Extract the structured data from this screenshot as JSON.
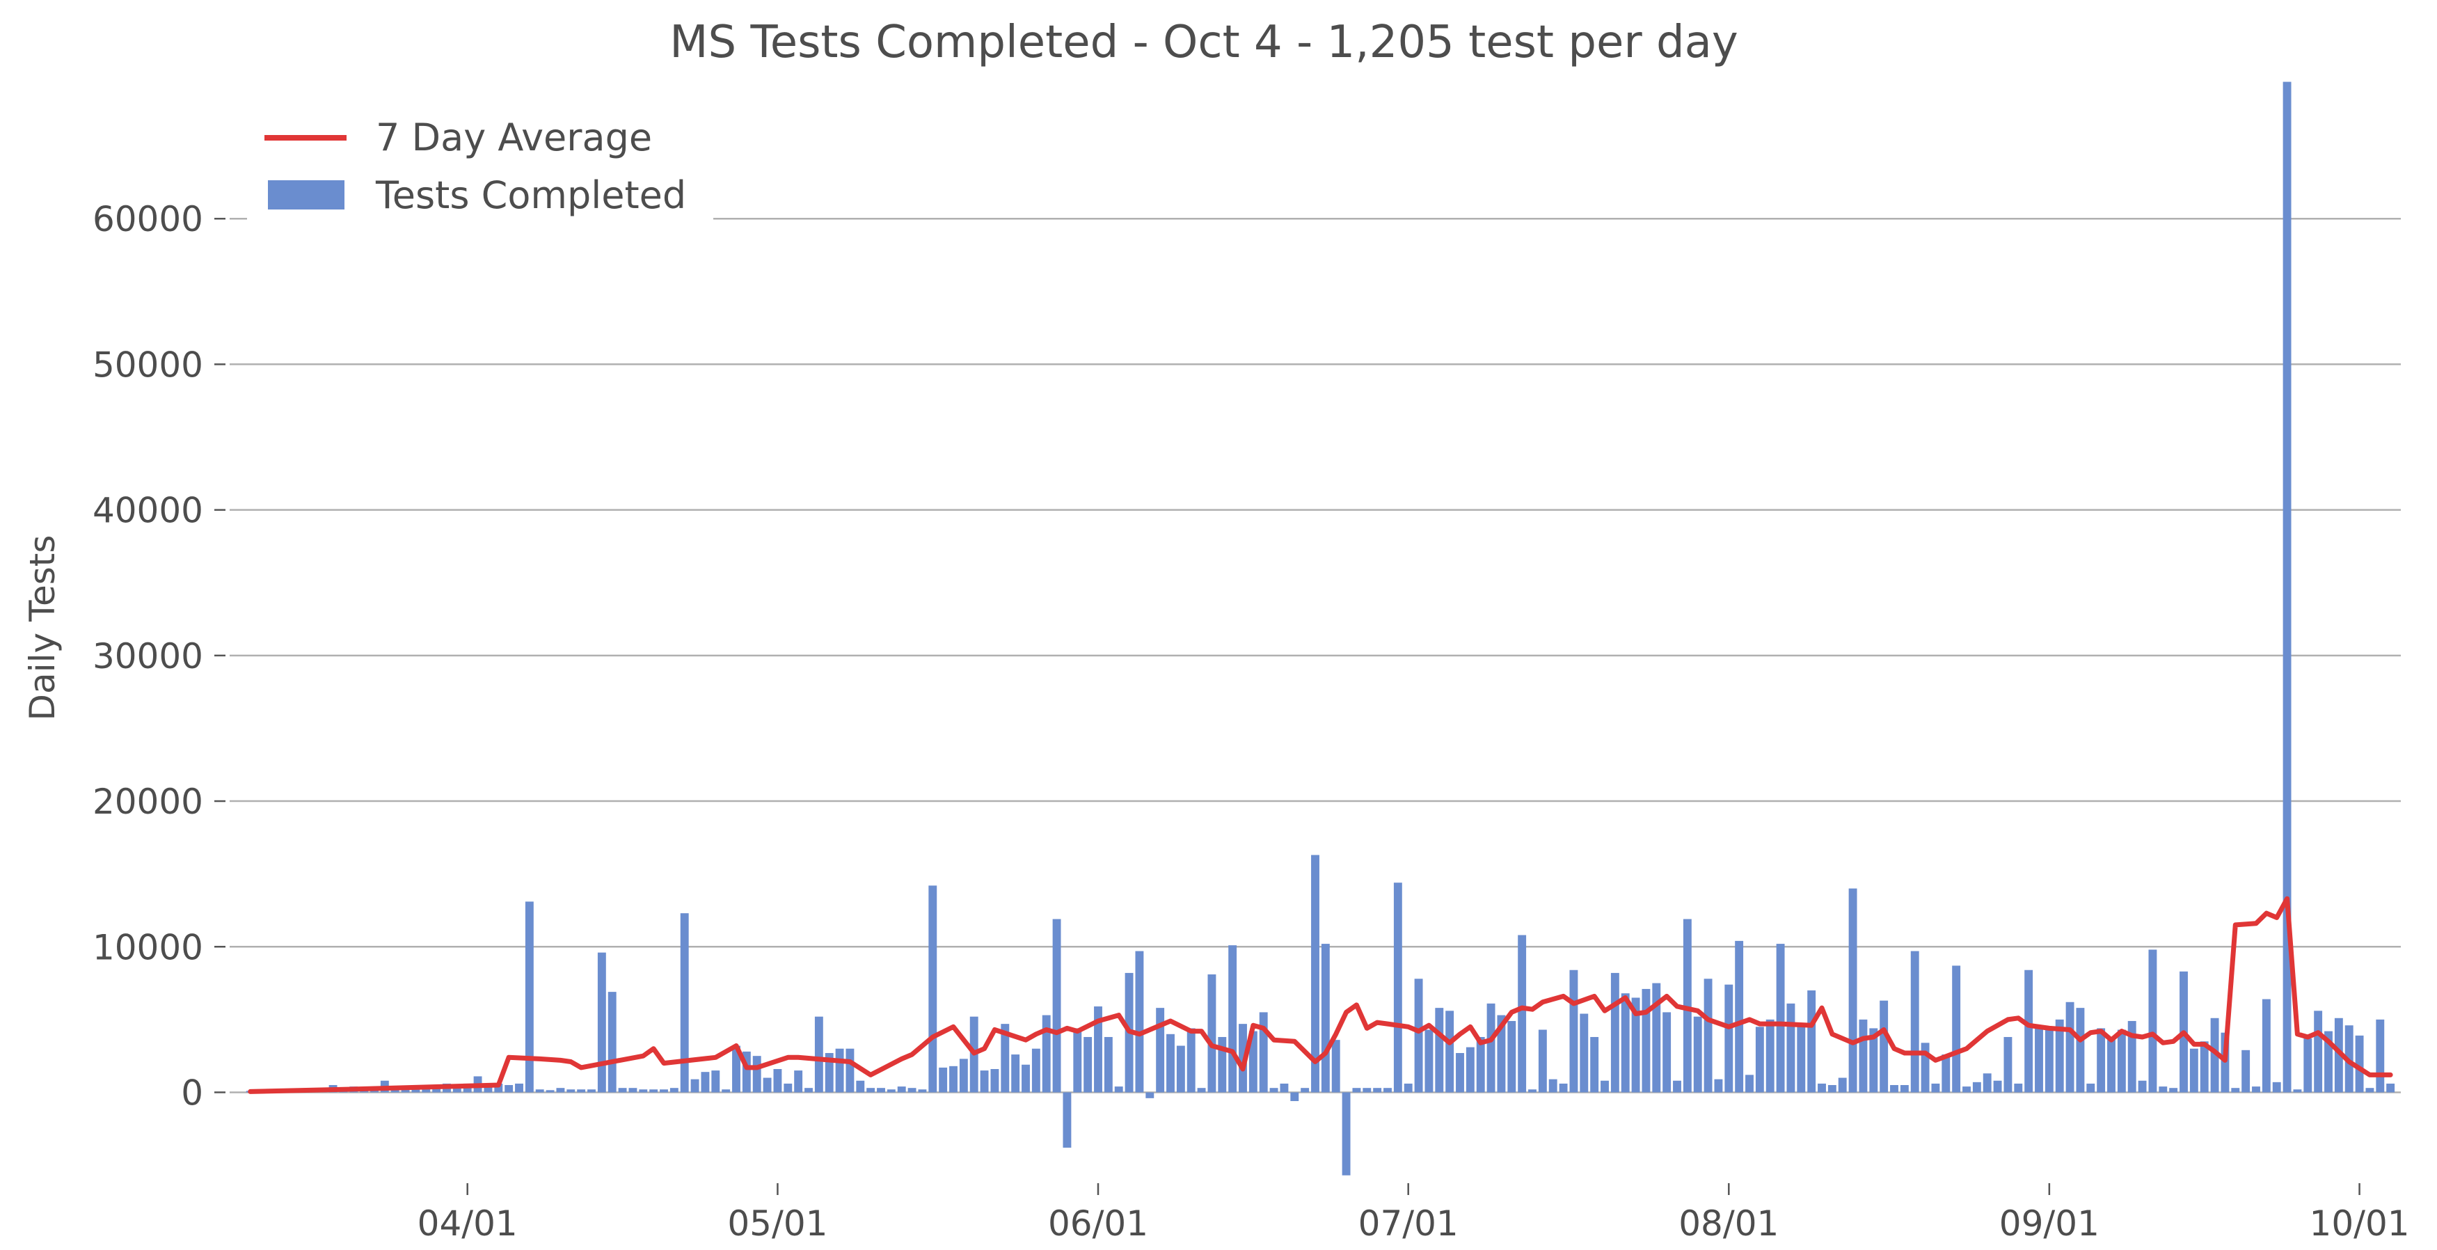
{
  "chart_data": {
    "type": "bar",
    "title": "MS Tests Completed - Oct 4 - 1,205 test per day",
    "xlabel": "",
    "ylabel": "Daily Tests",
    "ylim": [
      -6000,
      70000
    ],
    "xlim": [
      "2020-03-09",
      "2020-10-05"
    ],
    "grid": "horizontal",
    "legend_position": "top-left",
    "colors": {
      "bars": "#6a8dcf",
      "line": "#e03636",
      "grid": "#b0b0b0",
      "text": "#4d4d4d"
    },
    "yticks": [
      {
        "value": 0,
        "label": "0"
      },
      {
        "value": 10000,
        "label": "10000"
      },
      {
        "value": 20000,
        "label": "20000"
      },
      {
        "value": 30000,
        "label": "30000"
      },
      {
        "value": 40000,
        "label": "40000"
      },
      {
        "value": 50000,
        "label": "50000"
      },
      {
        "value": 60000,
        "label": "60000"
      }
    ],
    "xticks": [
      {
        "value": "2020-04-01",
        "label": "04/01"
      },
      {
        "value": "2020-05-01",
        "label": "05/01"
      },
      {
        "value": "2020-06-01",
        "label": "06/01"
      },
      {
        "value": "2020-07-01",
        "label": "07/01"
      },
      {
        "value": "2020-08-01",
        "label": "08/01"
      },
      {
        "value": "2020-09-01",
        "label": "09/01"
      },
      {
        "value": "2020-10-01",
        "label": "10/01"
      }
    ],
    "legend": [
      {
        "name": "7 Day Average",
        "kind": "line"
      },
      {
        "name": "Tests Completed",
        "kind": "bar"
      }
    ],
    "bar_dates": [
      "2020-03-11",
      "2020-03-12",
      "2020-03-13",
      "2020-03-14",
      "2020-03-15",
      "2020-03-16",
      "2020-03-17",
      "2020-03-18",
      "2020-03-19",
      "2020-03-20",
      "2020-03-21",
      "2020-03-22",
      "2020-03-23",
      "2020-03-24",
      "2020-03-25",
      "2020-03-26",
      "2020-03-27",
      "2020-03-28",
      "2020-03-29",
      "2020-03-30",
      "2020-03-31",
      "2020-04-01",
      "2020-04-02",
      "2020-04-03",
      "2020-04-04",
      "2020-04-05",
      "2020-04-06",
      "2020-04-07",
      "2020-04-08",
      "2020-04-09",
      "2020-04-10",
      "2020-04-11",
      "2020-04-12",
      "2020-04-13",
      "2020-04-14",
      "2020-04-15",
      "2020-04-16",
      "2020-04-17",
      "2020-04-18",
      "2020-04-19",
      "2020-04-20",
      "2020-04-21",
      "2020-04-22",
      "2020-04-23",
      "2020-04-24",
      "2020-04-25",
      "2020-04-26",
      "2020-04-27",
      "2020-04-28",
      "2020-04-29",
      "2020-04-30",
      "2020-05-01",
      "2020-05-02",
      "2020-05-03",
      "2020-05-04",
      "2020-05-05",
      "2020-05-06",
      "2020-05-07",
      "2020-05-08",
      "2020-05-09",
      "2020-05-10",
      "2020-05-11",
      "2020-05-12",
      "2020-05-13",
      "2020-05-14",
      "2020-05-15",
      "2020-05-16",
      "2020-05-17",
      "2020-05-18",
      "2020-05-19",
      "2020-05-20",
      "2020-05-21",
      "2020-05-22",
      "2020-05-23",
      "2020-05-24",
      "2020-05-25",
      "2020-05-26",
      "2020-05-27",
      "2020-05-28",
      "2020-05-29",
      "2020-05-30",
      "2020-05-31",
      "2020-06-01",
      "2020-06-02",
      "2020-06-03",
      "2020-06-04",
      "2020-06-05",
      "2020-06-06",
      "2020-06-07",
      "2020-06-08",
      "2020-06-09",
      "2020-06-10",
      "2020-06-11",
      "2020-06-12",
      "2020-06-13",
      "2020-06-14",
      "2020-06-15",
      "2020-06-16",
      "2020-06-17",
      "2020-06-18",
      "2020-06-19",
      "2020-06-20",
      "2020-06-21",
      "2020-06-22",
      "2020-06-23",
      "2020-06-24",
      "2020-06-25",
      "2020-06-26",
      "2020-06-27",
      "2020-06-28",
      "2020-06-29",
      "2020-06-30",
      "2020-07-01",
      "2020-07-02",
      "2020-07-03",
      "2020-07-04",
      "2020-07-05",
      "2020-07-06",
      "2020-07-07",
      "2020-07-08",
      "2020-07-09",
      "2020-07-10",
      "2020-07-11",
      "2020-07-12",
      "2020-07-13",
      "2020-07-14",
      "2020-07-15",
      "2020-07-16",
      "2020-07-17",
      "2020-07-18",
      "2020-07-19",
      "2020-07-20",
      "2020-07-21",
      "2020-07-22",
      "2020-07-23",
      "2020-07-24",
      "2020-07-25",
      "2020-07-26",
      "2020-07-27",
      "2020-07-28",
      "2020-07-29",
      "2020-07-30",
      "2020-07-31",
      "2020-08-01",
      "2020-08-02",
      "2020-08-03",
      "2020-08-04",
      "2020-08-05",
      "2020-08-06",
      "2020-08-07",
      "2020-08-08",
      "2020-08-09",
      "2020-08-10",
      "2020-08-11",
      "2020-08-12",
      "2020-08-13",
      "2020-08-14",
      "2020-08-15",
      "2020-08-16",
      "2020-08-17",
      "2020-08-18",
      "2020-08-19",
      "2020-08-20",
      "2020-08-21",
      "2020-08-22",
      "2020-08-23",
      "2020-08-24",
      "2020-08-25",
      "2020-08-26",
      "2020-08-27",
      "2020-08-28",
      "2020-08-29",
      "2020-08-30",
      "2020-08-31",
      "2020-09-01",
      "2020-09-02",
      "2020-09-03",
      "2020-09-04",
      "2020-09-05",
      "2020-09-06",
      "2020-09-07",
      "2020-09-08",
      "2020-09-09",
      "2020-09-10",
      "2020-09-11",
      "2020-09-12",
      "2020-09-13",
      "2020-09-14",
      "2020-09-15",
      "2020-09-16",
      "2020-09-17",
      "2020-09-18",
      "2020-09-19",
      "2020-09-20",
      "2020-09-21",
      "2020-09-22",
      "2020-09-23",
      "2020-09-24",
      "2020-09-25",
      "2020-09-26",
      "2020-09-27",
      "2020-09-28",
      "2020-09-29",
      "2020-09-30",
      "2020-10-01",
      "2020-10-02",
      "2020-10-03",
      "2020-10-04"
    ],
    "bar_values": [
      100,
      100,
      100,
      100,
      150,
      200,
      250,
      300,
      500,
      300,
      400,
      250,
      300,
      800,
      300,
      400,
      350,
      300,
      500,
      600,
      500,
      600,
      1100,
      500,
      600,
      500,
      600,
      13100,
      200,
      150,
      300,
      200,
      200,
      200,
      9600,
      6900,
      300,
      300,
      200,
      200,
      200,
      300,
      12300,
      900,
      1400,
      1500,
      200,
      3200,
      2800,
      2500,
      1000,
      1600,
      600,
      1500,
      300,
      5200,
      2700,
      3000,
      3000,
      800,
      300,
      300,
      200,
      400,
      300,
      200,
      14200,
      1700,
      1800,
      2300,
      5200,
      1500,
      1600,
      4700,
      2600,
      1900,
      3000,
      5300,
      11900,
      -3800,
      4400,
      3800,
      5900,
      3800,
      400,
      8200,
      9700,
      -400,
      5800,
      4000,
      3200,
      4400,
      300,
      8100,
      3800,
      10100,
      4700,
      4200,
      5500,
      300,
      600,
      -600,
      300,
      16300,
      10200,
      3600,
      -5700,
      300,
      300,
      300,
      300,
      14400,
      600,
      7800,
      4300,
      5800,
      5600,
      2700,
      3100,
      3800,
      6100,
      5300,
      4900,
      10800,
      200,
      4300,
      900,
      600,
      8400,
      5400,
      3800,
      800,
      8200,
      6800,
      6500,
      7100,
      7500,
      5500,
      800,
      11900,
      5200,
      7800,
      900,
      7400,
      10400,
      1200,
      4500,
      5000,
      10200,
      6100,
      4600,
      7000,
      600,
      500,
      1000,
      14000,
      5000,
      4400,
      6300,
      500,
      500,
      9700,
      3400,
      600,
      2600,
      8700,
      400,
      700,
      1300,
      800,
      3800,
      600,
      8400,
      4500,
      4500,
      5000,
      6200,
      5800,
      600,
      4400,
      3600,
      4300,
      4900,
      800,
      9800,
      400,
      300,
      8300,
      3000,
      3500,
      5100,
      4100,
      300,
      2900,
      400,
      6400,
      700,
      69400,
      200,
      3700,
      5600,
      4200,
      5100,
      4600,
      3900,
      300,
      5000,
      600,
      700,
      600,
      600,
      400
    ],
    "avg_dates": [
      "2020-03-11",
      "2020-03-20",
      "2020-03-30",
      "2020-04-04",
      "2020-04-05",
      "2020-04-08",
      "2020-04-10",
      "2020-04-11",
      "2020-04-12",
      "2020-04-18",
      "2020-04-19",
      "2020-04-20",
      "2020-04-25",
      "2020-04-27",
      "2020-04-28",
      "2020-04-29",
      "2020-05-02",
      "2020-05-03",
      "2020-05-08",
      "2020-05-10",
      "2020-05-13",
      "2020-05-14",
      "2020-05-16",
      "2020-05-18",
      "2020-05-20",
      "2020-05-21",
      "2020-05-22",
      "2020-05-25",
      "2020-05-26",
      "2020-05-27",
      "2020-05-28",
      "2020-05-29",
      "2020-05-30",
      "2020-06-01",
      "2020-06-03",
      "2020-06-04",
      "2020-06-05",
      "2020-06-08",
      "2020-06-10",
      "2020-06-11",
      "2020-06-12",
      "2020-06-14",
      "2020-06-15",
      "2020-06-16",
      "2020-06-17",
      "2020-06-18",
      "2020-06-20",
      "2020-06-22",
      "2020-06-23",
      "2020-06-24",
      "2020-06-25",
      "2020-06-26",
      "2020-06-27",
      "2020-06-28",
      "2020-06-29",
      "2020-07-01",
      "2020-07-02",
      "2020-07-03",
      "2020-07-05",
      "2020-07-06",
      "2020-07-07",
      "2020-07-08",
      "2020-07-09",
      "2020-07-11",
      "2020-07-12",
      "2020-07-13",
      "2020-07-14",
      "2020-07-16",
      "2020-07-17",
      "2020-07-19",
      "2020-07-20",
      "2020-07-22",
      "2020-07-23",
      "2020-07-24",
      "2020-07-26",
      "2020-07-27",
      "2020-07-29",
      "2020-07-30",
      "2020-08-01",
      "2020-08-03",
      "2020-08-04",
      "2020-08-06",
      "2020-08-09",
      "2020-08-10",
      "2020-08-11",
      "2020-08-13",
      "2020-08-14",
      "2020-08-15",
      "2020-08-16",
      "2020-08-17",
      "2020-08-18",
      "2020-08-20",
      "2020-08-21",
      "2020-08-24",
      "2020-08-26",
      "2020-08-28",
      "2020-08-29",
      "2020-08-30",
      "2020-09-01",
      "2020-09-03",
      "2020-09-04",
      "2020-09-05",
      "2020-09-06",
      "2020-09-07",
      "2020-09-08",
      "2020-09-09",
      "2020-09-10",
      "2020-09-11",
      "2020-09-12",
      "2020-09-13",
      "2020-09-14",
      "2020-09-15",
      "2020-09-16",
      "2020-09-17",
      "2020-09-18",
      "2020-09-19",
      "2020-09-21",
      "2020-09-22",
      "2020-09-23",
      "2020-09-24",
      "2020-09-25",
      "2020-09-26",
      "2020-09-27",
      "2020-09-28",
      "2020-09-29",
      "2020-09-30",
      "2020-10-02",
      "2020-10-04"
    ],
    "avg_values": [
      50,
      200,
      400,
      500,
      2400,
      2300,
      2200,
      2100,
      1700,
      2500,
      3000,
      2000,
      2400,
      3200,
      1700,
      1700,
      2400,
      2400,
      2100,
      1200,
      2300,
      2600,
      3800,
      4500,
      2700,
      3000,
      4300,
      3600,
      4000,
      4300,
      4100,
      4400,
      4200,
      4900,
      5300,
      4200,
      4000,
      4900,
      4200,
      4200,
      3200,
      2800,
      1600,
      4600,
      4400,
      3600,
      3500,
      2100,
      2700,
      4000,
      5500,
      6000,
      4400,
      4800,
      4700,
      4500,
      4200,
      4600,
      3400,
      4000,
      4500,
      3400,
      3600,
      5500,
      5800,
      5700,
      6200,
      6600,
      6100,
      6600,
      5600,
      6500,
      5400,
      5500,
      6600,
      5900,
      5600,
      5000,
      4500,
      5000,
      4700,
      4700,
      4600,
      5800,
      4000,
      3400,
      3700,
      3800,
      4300,
      3000,
      2700,
      2700,
      2200,
      3000,
      4200,
      5000,
      5100,
      4600,
      4400,
      4300,
      3600,
      4100,
      4200,
      3600,
      4200,
      3900,
      3800,
      4000,
      3400,
      3500,
      4100,
      3300,
      3300,
      2800,
      2200,
      11500,
      11600,
      12300,
      12000,
      13300,
      4000,
      3800,
      4100,
      3500,
      2800,
      2100,
      1200,
      1200
    ]
  }
}
